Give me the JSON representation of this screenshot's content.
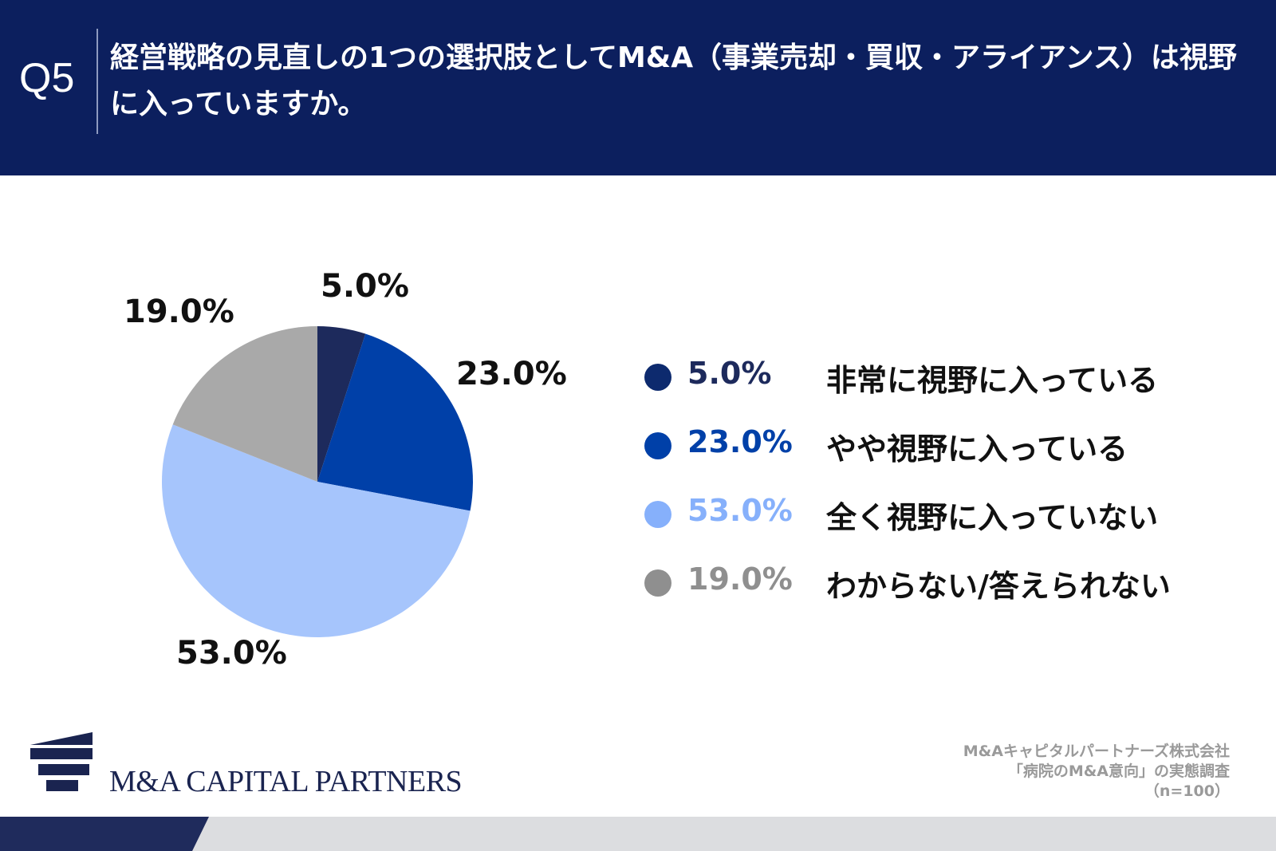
{
  "header": {
    "question_number": "Q5",
    "title": "経営戦略の見直しの1つの選択肢としてM&A（事業売却・買収・アライアンス）は視野に入っていますか。"
  },
  "chart_data": {
    "type": "pie",
    "title": "経営戦略の見直しの1つの選択肢としてM&A（事業売却・買収・アライアンス）は視野に入っていますか。",
    "slices": [
      {
        "label": "非常に視野に入っている",
        "value": 5.0,
        "display": "5.0%",
        "color": "#1d2a5c"
      },
      {
        "label": "やや視野に入っている",
        "value": 23.0,
        "display": "23.0%",
        "color": "#0040a8"
      },
      {
        "label": "全く視野に入っていない",
        "value": 53.0,
        "display": "53.0%",
        "color": "#a6c5fc"
      },
      {
        "label": "わからない/答えられない",
        "value": 19.0,
        "display": "19.0%",
        "color": "#a9a9a9"
      }
    ],
    "legend_placement": "right"
  },
  "legend": {
    "pct_colors": [
      "#1d2a5c",
      "#0040a8",
      "#86b0fb",
      "#8f8f8f"
    ],
    "dot_colors": [
      "#0d2a6e",
      "#0040a8",
      "#86b0fb",
      "#8f8f8f"
    ]
  },
  "branding": {
    "logo_text": "M&A CAPITAL PARTNERS",
    "logo_color": "#1a2450"
  },
  "source": {
    "line1": "M&Aキャピタルパートナーズ株式会社",
    "line2": "「病院のM&A意向」の実態調査",
    "line3": "（n=100）"
  }
}
